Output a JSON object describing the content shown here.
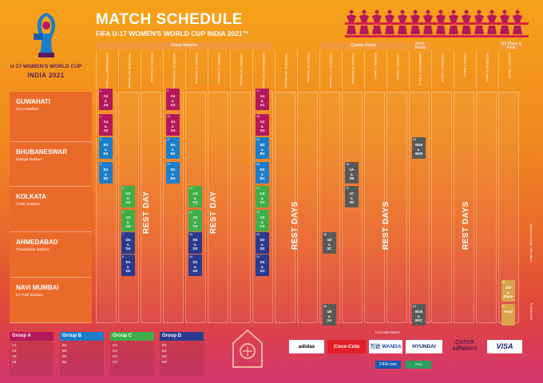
{
  "logo": {
    "line1": "U-17 WOMEN'S WORLD CUP",
    "line2": "INDIA 2021",
    "badge": "FIFA"
  },
  "header": {
    "title": "MATCH SCHEDULE",
    "subtitle": "FIFA U-17 WOMEN'S WORLD CUP INDIA 2021™"
  },
  "stages": [
    {
      "label": "Group Matches"
    },
    {
      "label": "Quarter-Finals"
    },
    {
      "label": "Semi-Finals"
    },
    {
      "label": "3rd Place & Final"
    }
  ],
  "days": [
    {
      "label": "WEDNESDAY 17 February"
    },
    {
      "label": "THURSDAY 18 February"
    },
    {
      "label": "FRIDAY 19 February"
    },
    {
      "label": "SATURDAY 20 February"
    },
    {
      "label": "SUNDAY 21 February"
    },
    {
      "label": "MONDAY 22 February"
    },
    {
      "label": "TUESDAY 23 February"
    },
    {
      "label": "WEDNESDAY 24 February"
    },
    {
      "label": "THURSDAY 25 February"
    },
    {
      "label": "FRIDAY 26 February"
    },
    {
      "label": "SATURDAY 27 February"
    },
    {
      "label": "SUNDAY 28 February"
    },
    {
      "label": "MONDAY 1 March"
    },
    {
      "label": "TUESDAY 2 March"
    },
    {
      "label": "WEDNESDAY 3 March"
    },
    {
      "label": "THURSDAY 4 March"
    },
    {
      "label": "FRIDAY 5 March"
    },
    {
      "label": "SATURDAY 6 March"
    },
    {
      "label": "SUNDAY 7 March"
    }
  ],
  "venues": [
    {
      "city": "GUWAHATI",
      "stadium": "IGAU Stadium"
    },
    {
      "city": "BHUBANESWAR",
      "stadium": "Kalinga Stadium"
    },
    {
      "city": "KOLKATA",
      "stadium": "VYBK Stadium"
    },
    {
      "city": "AHMEDABAD",
      "stadium": "TransStadia Stadium"
    },
    {
      "city": "NAVI MUMBAI",
      "stadium": "DY Patil Stadium"
    }
  ],
  "rest_labels": {
    "rest_day": "REST DAY",
    "rest_days": "REST DAYS"
  },
  "matches": [
    {
      "num": "1",
      "home": "A3",
      "away": "A4",
      "group": "A"
    },
    {
      "num": "2",
      "home": "A1",
      "away": "A2",
      "group": "A"
    },
    {
      "num": "3",
      "home": "B3",
      "away": "B4",
      "group": "B"
    },
    {
      "num": "4",
      "home": "B1",
      "away": "B2",
      "group": "B"
    },
    {
      "num": "5",
      "home": "C3",
      "away": "C4",
      "group": "C"
    },
    {
      "num": "6",
      "home": "C1",
      "away": "C2",
      "group": "C"
    },
    {
      "num": "7",
      "home": "D3",
      "away": "D4",
      "group": "D"
    },
    {
      "num": "8",
      "home": "D1",
      "away": "D2",
      "group": "D"
    },
    {
      "num": "9",
      "home": "A4",
      "away": "A2",
      "group": "A"
    },
    {
      "num": "10",
      "home": "A1",
      "away": "A3",
      "group": "A"
    },
    {
      "num": "11",
      "home": "B4",
      "away": "B2",
      "group": "B"
    },
    {
      "num": "12",
      "home": "B1",
      "away": "B3",
      "group": "B"
    },
    {
      "num": "13",
      "home": "C4",
      "away": "C2",
      "group": "C"
    },
    {
      "num": "14",
      "home": "C1",
      "away": "C3",
      "group": "C"
    },
    {
      "num": "15",
      "home": "D4",
      "away": "D2",
      "group": "D"
    },
    {
      "num": "16",
      "home": "D1",
      "away": "D3",
      "group": "D"
    },
    {
      "num": "17",
      "home": "A4",
      "away": "A1",
      "group": "A"
    },
    {
      "num": "18",
      "home": "A2",
      "away": "A3",
      "group": "A"
    },
    {
      "num": "19",
      "home": "B2",
      "away": "B3",
      "group": "B"
    },
    {
      "num": "20",
      "home": "B4",
      "away": "B1",
      "group": "B"
    },
    {
      "num": "21",
      "home": "C4",
      "away": "C1",
      "group": "C"
    },
    {
      "num": "22",
      "home": "C2",
      "away": "C3",
      "group": "C"
    },
    {
      "num": "23",
      "home": "D2",
      "away": "D3",
      "group": "D"
    },
    {
      "num": "24",
      "home": "D4",
      "away": "D1",
      "group": "D"
    },
    {
      "num": "25",
      "home": "1A",
      "away": "2B",
      "group": "Q"
    },
    {
      "num": "26",
      "home": "1B",
      "away": "2A",
      "group": "Q"
    },
    {
      "num": "27",
      "home": "1C",
      "away": "2D",
      "group": "Q"
    },
    {
      "num": "28",
      "home": "1D",
      "away": "2C",
      "group": "Q"
    },
    {
      "num": "29",
      "home": "W25",
      "away": "W27",
      "group": "Q"
    },
    {
      "num": "30",
      "home": "W26",
      "away": "W28",
      "group": "Q"
    },
    {
      "num": "31",
      "home": "3rd",
      "away": "Place",
      "group": "F"
    },
    {
      "num": "32",
      "home": "Final",
      "away": "",
      "group": "F"
    }
  ],
  "groups": [
    {
      "name": "Group A",
      "teams": [
        "A1",
        "A2",
        "A3",
        "A4"
      ],
      "color": "#b5195c"
    },
    {
      "name": "Group B",
      "teams": [
        "B1",
        "B2",
        "B3",
        "B4"
      ],
      "color": "#1c7ecb"
    },
    {
      "name": "Group C",
      "teams": [
        "C1",
        "C2",
        "C3",
        "C4"
      ],
      "color": "#3fae49"
    },
    {
      "name": "Group D",
      "teams": [
        "D1",
        "D2",
        "D3",
        "D4"
      ],
      "color": "#2a3b8f"
    }
  ],
  "partners": {
    "label": "FIFA PARTNERS",
    "sponsors": [
      "adidas",
      "Coca-Cola",
      "万达 WANDA",
      "HYUNDAI",
      "QATAR AIRWAYS",
      "VISA"
    ],
    "fifacom": "FIFA.com",
    "bottom": "FIFA"
  },
  "note": "Subject to change, 15th edition",
  "version": "© 06.08.2020"
}
